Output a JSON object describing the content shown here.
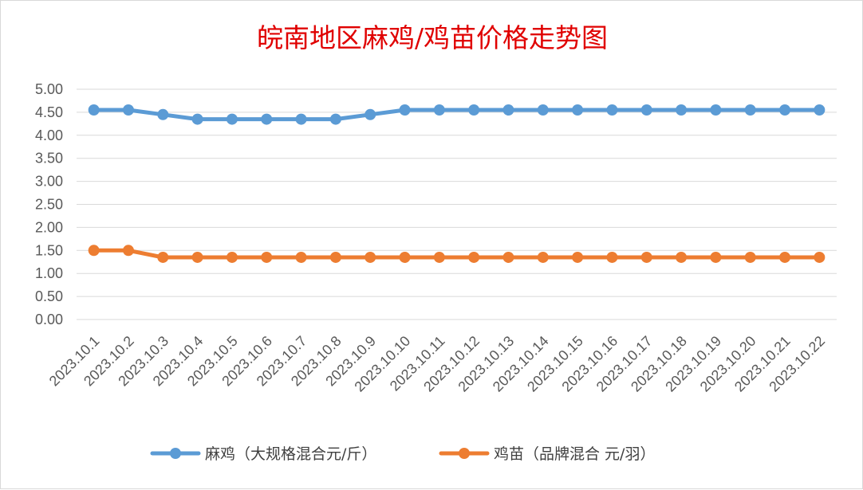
{
  "chart_data": {
    "type": "line",
    "title": "皖南地区麻鸡/鸡苗价格走势图",
    "xlabel": "",
    "ylabel": "",
    "categories": [
      "2023.10.1",
      "2023.10.2",
      "2023.10.3",
      "2023.10.4",
      "2023.10.5",
      "2023.10.6",
      "2023.10.7",
      "2023.10.8",
      "2023.10.9",
      "2023.10.10",
      "2023.10.11",
      "2023.10.12",
      "2023.10.13",
      "2023.10.14",
      "2023.10.15",
      "2023.10.16",
      "2023.10.17",
      "2023.10.18",
      "2023.10.19",
      "2023.10.20",
      "2023.10.21",
      "2023.10.22"
    ],
    "y_ticks": [
      "5.00",
      "4.50",
      "4.00",
      "3.50",
      "3.00",
      "2.50",
      "2.00",
      "1.50",
      "1.00",
      "0.50",
      "0.00"
    ],
    "ylim": [
      0,
      5
    ],
    "grid": true,
    "legend_position": "bottom",
    "series": [
      {
        "name": "麻鸡（大规格混合元/斤）",
        "color": "#5b9bd5",
        "values": [
          4.55,
          4.55,
          4.45,
          4.35,
          4.35,
          4.35,
          4.35,
          4.35,
          4.45,
          4.55,
          4.55,
          4.55,
          4.55,
          4.55,
          4.55,
          4.55,
          4.55,
          4.55,
          4.55,
          4.55,
          4.55,
          4.55
        ]
      },
      {
        "name": "鸡苗（品牌混合 元/羽）",
        "color": "#ed7d31",
        "values": [
          1.5,
          1.5,
          1.35,
          1.35,
          1.35,
          1.35,
          1.35,
          1.35,
          1.35,
          1.35,
          1.35,
          1.35,
          1.35,
          1.35,
          1.35,
          1.35,
          1.35,
          1.35,
          1.35,
          1.35,
          1.35,
          1.35
        ]
      }
    ]
  }
}
